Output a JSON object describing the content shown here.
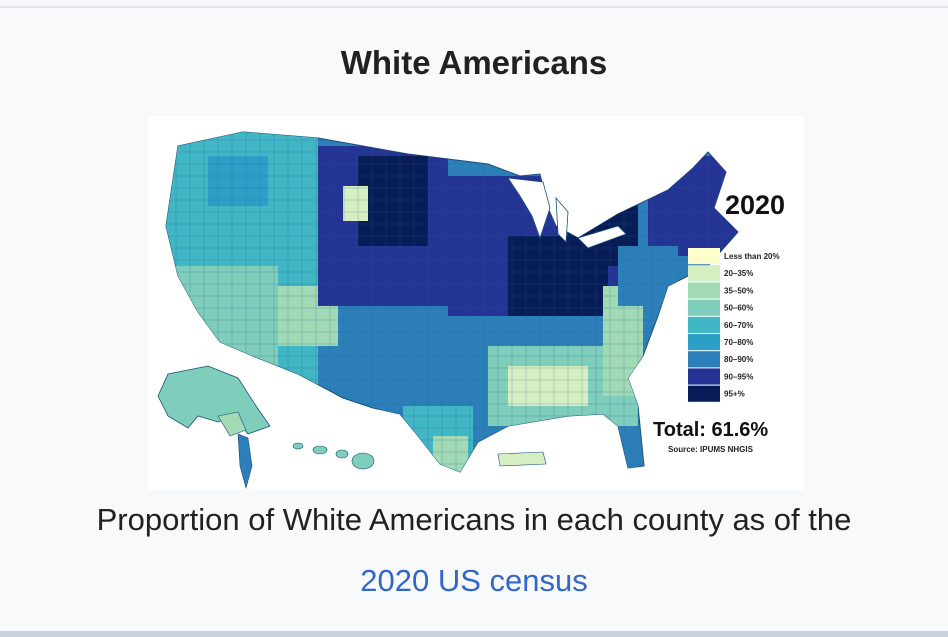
{
  "title": "White Americans",
  "map": {
    "year": "2020",
    "legend": [
      {
        "label": "Less than 20%",
        "color": "#ffffcc"
      },
      {
        "label": "20–35%",
        "color": "#d6efc2"
      },
      {
        "label": "35–50%",
        "color": "#a1dab4"
      },
      {
        "label": "50–60%",
        "color": "#7fcdbb"
      },
      {
        "label": "60–70%",
        "color": "#41b6c4"
      },
      {
        "label": "70–80%",
        "color": "#2c9fc6"
      },
      {
        "label": "80–90%",
        "color": "#2c7fb8"
      },
      {
        "label": "90–95%",
        "color": "#253494"
      },
      {
        "label": "95+%",
        "color": "#081d58"
      }
    ],
    "total": "Total: 61.6%",
    "source": "Source: IPUMS NHGIS"
  },
  "caption": {
    "text": "Proportion of White Americans in each county as of the",
    "link_text": "2020 US census"
  }
}
